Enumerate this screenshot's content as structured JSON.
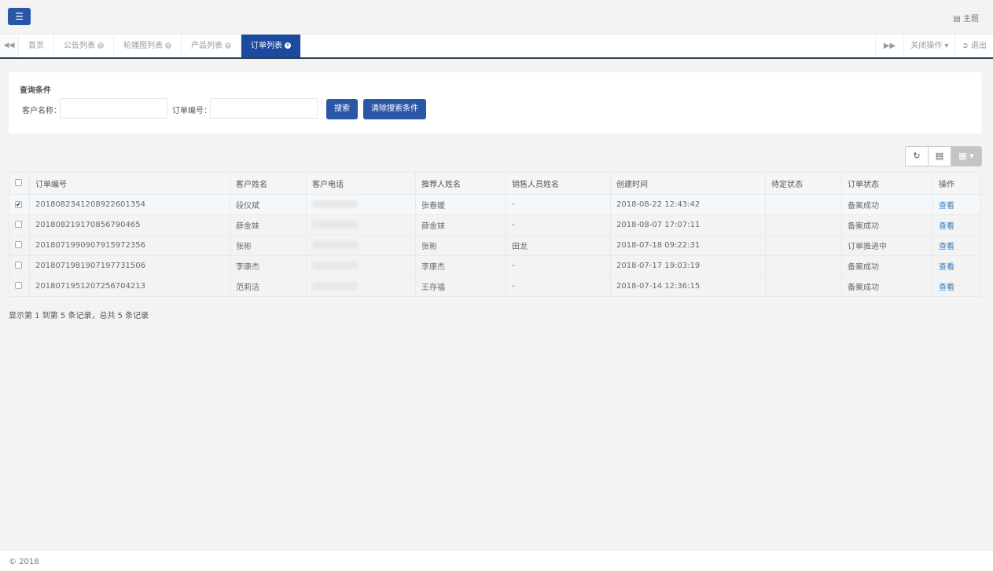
{
  "header": {
    "menu_icon": "bars-icon",
    "theme_label": "主题",
    "theme_icon": "list-icon"
  },
  "tabs": {
    "items": [
      {
        "label": "首页",
        "closable": false
      },
      {
        "label": "公告列表",
        "closable": true
      },
      {
        "label": "轮播图列表",
        "closable": true
      },
      {
        "label": "产品列表",
        "closable": true
      },
      {
        "label": "订单列表",
        "closable": true,
        "active": true
      }
    ],
    "close_ops": "关闭操作",
    "logout": "退出"
  },
  "search": {
    "title": "查询条件",
    "customer_label": "客户名称：",
    "customer_value": "",
    "order_label": "订单编号：",
    "order_value": "",
    "search_btn": "搜索",
    "clear_btn": "清除搜索条件"
  },
  "table": {
    "columns": [
      "订单编号",
      "客户姓名",
      "客户电话",
      "推荐人姓名",
      "销售人员姓名",
      "创建时间",
      "待定状态",
      "订单状态",
      "操作"
    ],
    "rows": [
      {
        "checked": true,
        "id": "2018082341208922601354",
        "name": "段仪斌",
        "referrer": "张春媛",
        "sales": "-",
        "created": "2018-08-22 12:43:42",
        "pending": "",
        "status": "备案成功",
        "action": "查看"
      },
      {
        "checked": false,
        "id": "2018082191708567904​65",
        "name": "薛金妹",
        "referrer": "薛金妹",
        "sales": "-",
        "created": "2018-08-07 17:07:11",
        "pending": "",
        "status": "备案成功",
        "action": "查看"
      },
      {
        "checked": false,
        "id": "2018071990907915972356",
        "name": "张彬",
        "referrer": "张彬",
        "sales": "田龙",
        "created": "2018-07-18 09:22:31",
        "pending": "",
        "status": "订单推进中",
        "action": "查看"
      },
      {
        "checked": false,
        "id": "2018071981907197731506",
        "name": "李康杰",
        "referrer": "李康杰",
        "sales": "-",
        "created": "2018-07-17 19:03:19",
        "pending": "",
        "status": "备案成功",
        "action": "查看"
      },
      {
        "checked": false,
        "id": "2018071951207256704213",
        "name": "范莉洁",
        "referrer": "王存福",
        "sales": "-",
        "created": "2018-07-14 12:36:15",
        "pending": "",
        "status": "备案成功",
        "action": "查看"
      }
    ]
  },
  "summary": "显示第 1 到第 5 条记录，总共 5 条记录",
  "footer": "© 2018"
}
